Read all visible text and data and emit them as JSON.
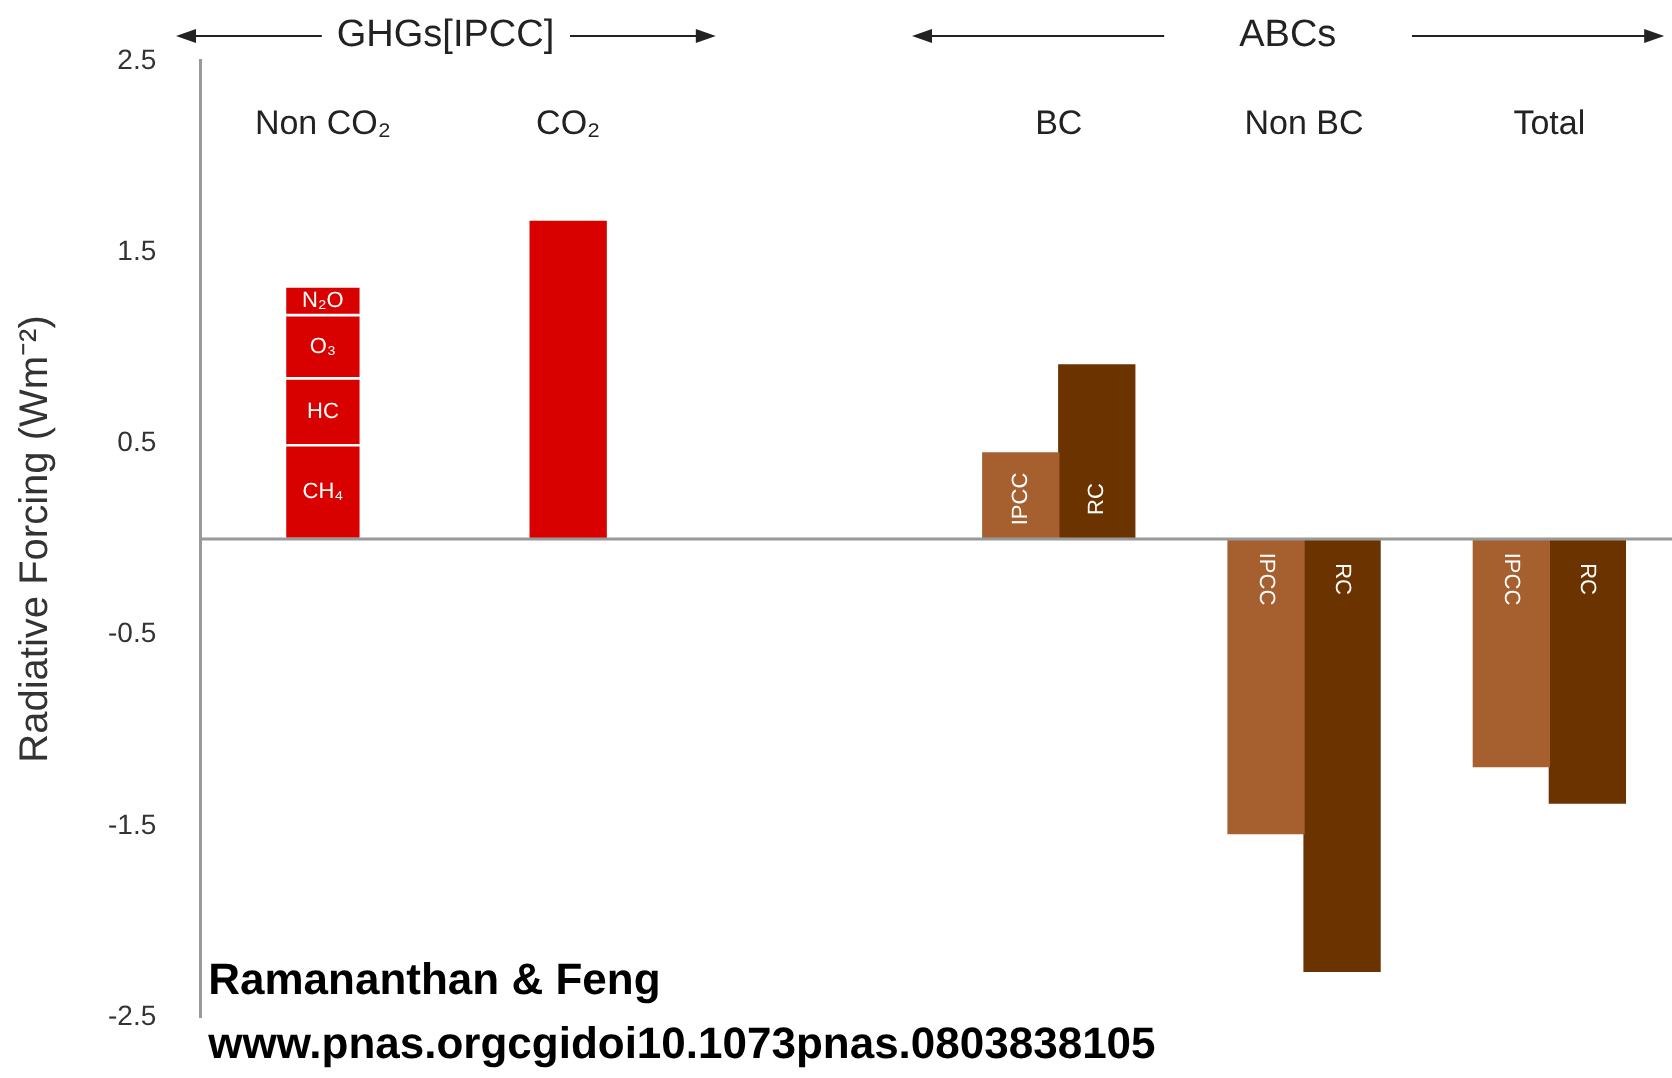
{
  "chart_data": {
    "type": "bar",
    "ylabel": "Radiative Forcing (Wm⁻²)",
    "categories": [
      "Non CO₂",
      "CO₂",
      null,
      "BC",
      "Non BC",
      "Total"
    ],
    "series": [
      {
        "name": "CH₄",
        "color": "#d90000",
        "values": [
          0.49,
          null,
          null,
          null,
          null,
          null
        ],
        "base": [
          0,
          null,
          null,
          null,
          null,
          null
        ]
      },
      {
        "name": "HC",
        "color": "#d90000",
        "values": [
          0.35,
          null,
          null,
          null,
          null,
          null
        ],
        "base": [
          0.49,
          null,
          null,
          null,
          null,
          null
        ]
      },
      {
        "name": "O₃",
        "color": "#d90000",
        "values": [
          0.33,
          null,
          null,
          null,
          null,
          null
        ],
        "base": [
          0.84,
          null,
          null,
          null,
          null,
          null
        ]
      },
      {
        "name": "N₂O",
        "color": "#d90000",
        "values": [
          0.15,
          null,
          null,
          null,
          null,
          null
        ],
        "base": [
          1.17,
          null,
          null,
          null,
          null,
          null
        ]
      },
      {
        "color": "#d90000",
        "values": [
          null,
          1.66,
          null,
          null,
          null,
          null
        ]
      },
      {
        "name": "IPCC",
        "color": "#a65f2e",
        "values": [
          null,
          null,
          null,
          0.45,
          -1.54,
          -1.19
        ]
      },
      {
        "name": "RC",
        "color": "#6b3300",
        "values": [
          null,
          null,
          null,
          0.91,
          -2.26,
          -1.38
        ]
      }
    ],
    "ylim": [
      -2.5,
      2.5
    ],
    "yticks": [
      -2.5,
      -1.5,
      -0.5,
      0.5,
      1.5,
      2.5
    ],
    "ref_lines": [
      {
        "axis": "y",
        "value": 0,
        "color": "#999999"
      }
    ],
    "annotations": [
      "GHGs[IPCC]",
      "ABCs",
      "Ramananthan & Feng",
      "www.pnas.orgcgidoi10.1073pnas.0803838105"
    ]
  }
}
